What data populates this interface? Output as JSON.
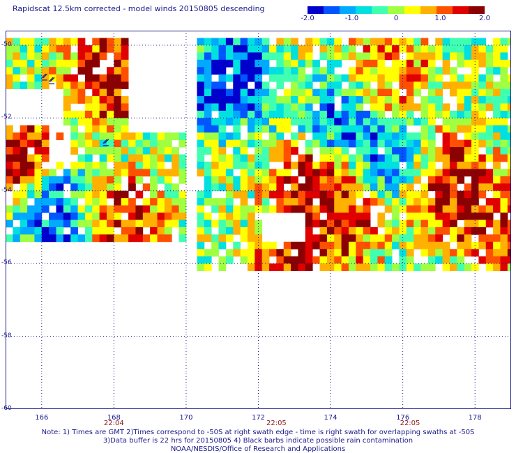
{
  "title": "Rapidscat 12.5km corrected - model winds 20150805 descending",
  "colorbar": {
    "ticks": [
      "-2.0",
      "-1.0",
      "0",
      "1.0",
      "2.0"
    ],
    "tick_values": [
      -2.0,
      -1.0,
      0,
      1.0,
      2.0
    ],
    "range": [
      -2.0,
      2.0
    ],
    "colors": [
      "#0000cc",
      "#0055ff",
      "#00aaff",
      "#00e0e0",
      "#40ffb0",
      "#a0ff40",
      "#ffff00",
      "#ffb000",
      "#ff5000",
      "#e00000",
      "#8b0000"
    ]
  },
  "axes": {
    "y_labels": [
      "-50",
      "-52",
      "-54",
      "-56",
      "-58",
      "-60"
    ],
    "y_values": [
      -50,
      -52,
      -54,
      -56,
      -58,
      -60
    ],
    "x_labels": [
      "166",
      "168",
      "170",
      "172",
      "174",
      "176",
      "178"
    ],
    "x_values": [
      166,
      168,
      170,
      172,
      174,
      176,
      178
    ],
    "lon_range": [
      165.0,
      179.0
    ],
    "lat_range": [
      -60.0,
      -49.6
    ],
    "grid": "dotted"
  },
  "times": [
    {
      "label": "22:04",
      "lon": 168
    },
    {
      "label": "22:05",
      "lon": 172.5
    },
    {
      "label": "22:05",
      "lon": 176.2
    }
  ],
  "notes": [
    "Note: 1) Times are GMT 2)Times correspond to -50S at right swath edge - time is right swath for overlapping swaths at -50S",
    "3)Data buffer is 22 hrs for 20150805 4) Black barbs indicate possible rain contamination",
    "NOAA/NESDIS/Office of Research and Applications"
  ],
  "map_data": {
    "type": "gridded-field",
    "variable": "corrected minus model wind speed difference",
    "cell_size_deg": 0.2,
    "regions": [
      {
        "name": "west-swath",
        "lon": [
          165.0,
          170.0
        ],
        "lat": [
          -55.4,
          -49.8
        ]
      },
      {
        "name": "east-swath",
        "lon": [
          170.3,
          179.0
        ],
        "lat": [
          -56.2,
          -49.8
        ]
      }
    ],
    "missing_patches": [
      {
        "lon": [
          165.0,
          166.6
        ],
        "lat": [
          -52.2,
          -51.2
        ]
      },
      {
        "lon": [
          168.4,
          170.0
        ],
        "lat": [
          -52.4,
          -49.8
        ]
      },
      {
        "lon": [
          166.2,
          166.8
        ],
        "lat": [
          -53.2,
          -52.6
        ]
      },
      {
        "lon": [
          172.0,
          173.2
        ],
        "lat": [
          -55.4,
          -54.6
        ]
      }
    ],
    "hotspots": [
      {
        "lon": 168.0,
        "lat": -50.8,
        "value": 2.0
      },
      {
        "lon": 165.2,
        "lat": -53.0,
        "value": 2.0
      },
      {
        "lon": 168.0,
        "lat": -54.8,
        "value": 1.8
      },
      {
        "lon": 173.8,
        "lat": -54.0,
        "value": 2.0
      },
      {
        "lon": 174.2,
        "lat": -54.6,
        "value": 1.6
      },
      {
        "lon": 177.2,
        "lat": -53.8,
        "value": 2.0
      },
      {
        "lon": 178.6,
        "lat": -55.0,
        "value": 1.6
      },
      {
        "lon": 175.5,
        "lat": -51.0,
        "value": 1.4
      },
      {
        "lon": 173.0,
        "lat": -56.1,
        "value": 1.8
      }
    ],
    "coldspots": [
      {
        "lon": 171.2,
        "lat": -51.0,
        "value": -2.0
      },
      {
        "lon": 174.6,
        "lat": -52.0,
        "value": -1.8
      },
      {
        "lon": 166.6,
        "lat": -54.6,
        "value": -1.8
      },
      {
        "lon": 175.6,
        "lat": -53.2,
        "value": -1.5
      }
    ]
  }
}
